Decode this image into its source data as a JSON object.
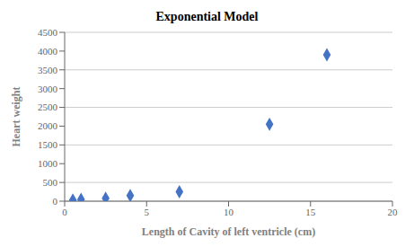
{
  "chart_data": {
    "type": "scatter",
    "title": "Exponential Model",
    "xlabel": "Length of Cavity of left ventricle (cm)",
    "ylabel": "Heart weight",
    "x": [
      0.5,
      1.0,
      2.5,
      4.0,
      7.0,
      12.5,
      16.0
    ],
    "values": [
      30,
      50,
      80,
      150,
      250,
      2050,
      3900
    ],
    "color": "#4472C4",
    "marker": "diamond",
    "xlim": [
      0,
      20
    ],
    "ylim": [
      0,
      4500
    ],
    "xticks": [
      0,
      5,
      10,
      15,
      20
    ],
    "yticks": [
      0,
      500,
      1000,
      1500,
      2000,
      2500,
      3000,
      3500,
      4000,
      4500
    ],
    "grid": "y"
  }
}
